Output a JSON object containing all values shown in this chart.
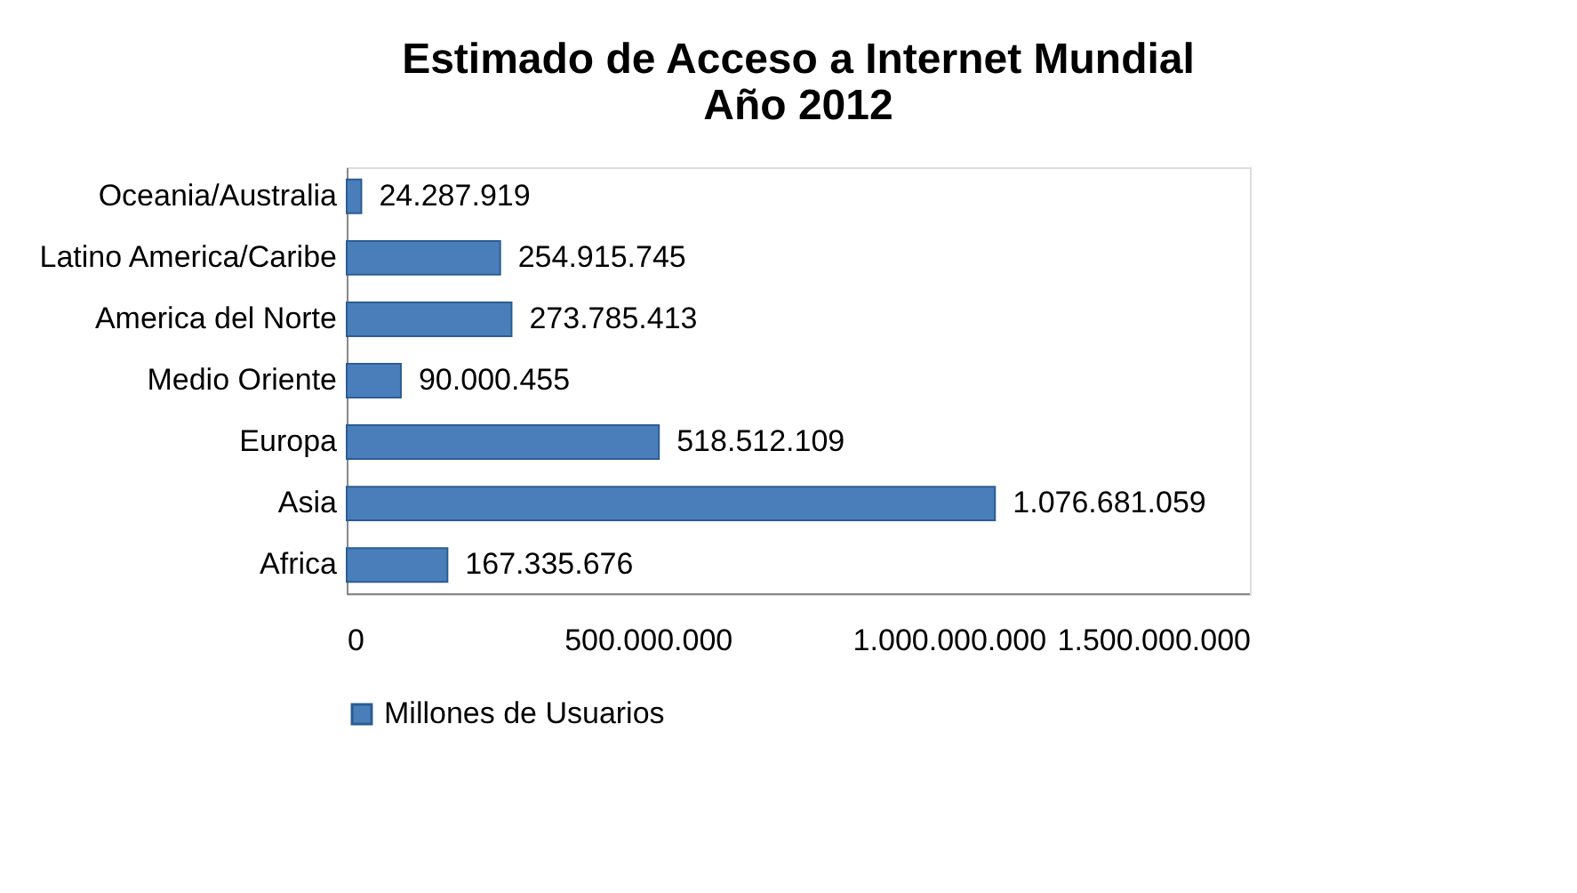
{
  "chart_data": {
    "type": "bar",
    "orientation": "horizontal",
    "title": "Estimado de Acceso a Internet Mundial\nAño 2012",
    "categories": [
      "Oceania/Australia",
      "Latino America/Caribe",
      "America del Norte",
      "Medio Oriente",
      "Europa",
      "Asia",
      "Africa"
    ],
    "series": [
      {
        "name": "Millones de Usuarios",
        "color": "#4a7ebb",
        "values": [
          24287919,
          254915745,
          273785413,
          90000455,
          518512109,
          1076681059,
          167335676
        ],
        "value_labels": [
          "24.287.919",
          "254.915.745",
          "273.785.413",
          "90.000.455",
          "518.512.109",
          "1.076.681.059",
          "167.335.676"
        ]
      }
    ],
    "xlim": [
      0,
      1500000000
    ],
    "xticks": [
      0,
      {
        "value": 500000000,
        "label": "500.000.000"
      },
      {
        "value": 1000000000,
        "label": "1.000.000.000"
      },
      {
        "value": 1500000000,
        "label": "1.500.000.000"
      }
    ],
    "grid": false,
    "legend": "bottom"
  }
}
